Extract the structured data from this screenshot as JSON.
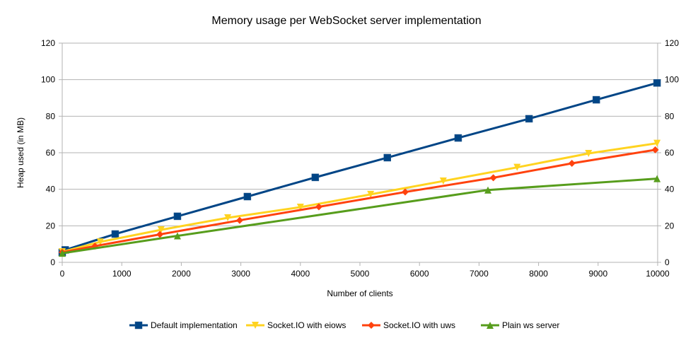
{
  "chart_data": {
    "type": "line",
    "title": "Memory usage per WebSocket server implementation",
    "xlabel": "Number of clients",
    "ylabel": "Heap used (in MB)",
    "xlim": [
      0,
      10000
    ],
    "ylim": [
      0,
      120
    ],
    "xticks": [
      0,
      1000,
      2000,
      3000,
      4000,
      5000,
      6000,
      7000,
      8000,
      9000,
      10000
    ],
    "yticks": [
      0,
      20,
      40,
      60,
      80,
      100,
      120
    ],
    "secondary_y_axis": true,
    "grid": "horizontal",
    "legend": "bottom",
    "series": [
      {
        "name": "Default implementation",
        "color": "#004586",
        "marker": "square",
        "x": [
          0,
          50,
          890,
          1935,
          3110,
          4250,
          5460,
          6650,
          7840,
          8970,
          9990
        ],
        "y": [
          5.4,
          6.8,
          15.5,
          25.2,
          36,
          46.5,
          57.3,
          68.1,
          78.6,
          89,
          98.2
        ]
      },
      {
        "name": "Socket.IO with eiows",
        "color": "#ffd320",
        "marker": "triangle-down",
        "x": [
          0,
          640,
          1660,
          2780,
          4000,
          5180,
          6400,
          7640,
          8840,
          9990
        ],
        "y": [
          5.8,
          11.2,
          17.8,
          24.4,
          30.2,
          37.2,
          44.5,
          52,
          59.6,
          65.2
        ]
      },
      {
        "name": "Socket.IO with uws",
        "color": "#ff420e",
        "marker": "diamond",
        "x": [
          0,
          550,
          1640,
          2980,
          4310,
          5760,
          7240,
          8560,
          9960
        ],
        "y": [
          5.5,
          8.9,
          15.3,
          23,
          30.4,
          38.5,
          46.3,
          54.2,
          61.6
        ]
      },
      {
        "name": "Plain ws server",
        "color": "#579d1c",
        "marker": "triangle-up",
        "x": [
          0,
          1935,
          7150,
          9990
        ],
        "y": [
          5,
          14.5,
          39.6,
          45.8
        ]
      }
    ]
  }
}
